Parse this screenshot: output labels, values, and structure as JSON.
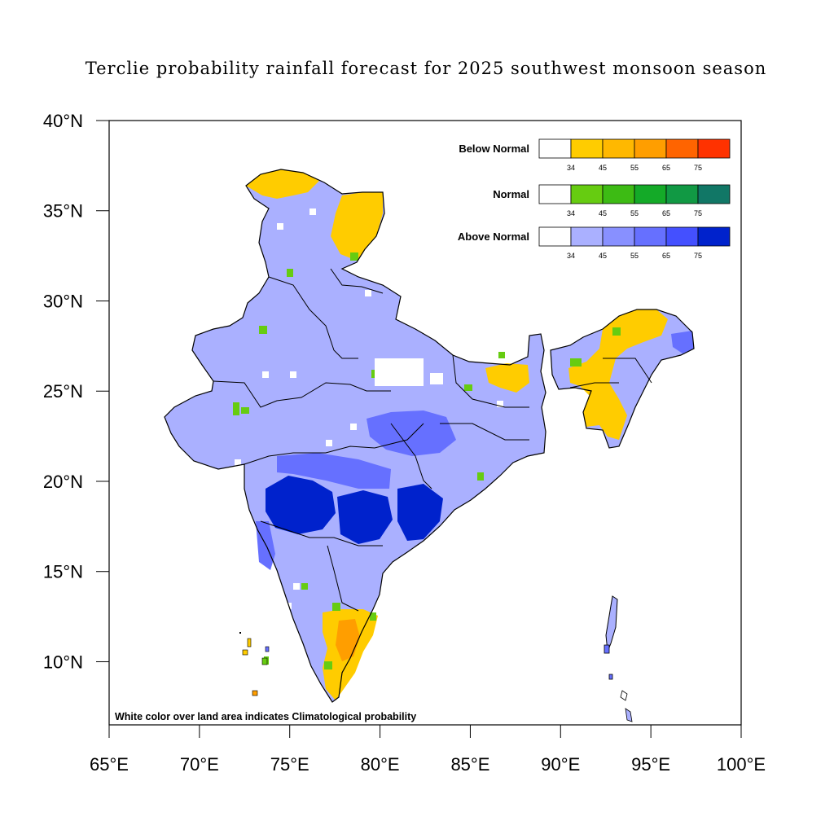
{
  "title": "Terclie probability rainfall forecast for 2025 southwest monsoon  season",
  "axes": {
    "x_ticks": [
      "65°E",
      "70°E",
      "75°E",
      "80°E",
      "85°E",
      "90°E",
      "95°E",
      "100°E"
    ],
    "y_ticks": [
      "40°N",
      "35°N",
      "30°N",
      "25°N",
      "20°N",
      "15°N",
      "10°N"
    ],
    "lon_range": [
      65,
      100
    ],
    "lat_range": [
      6.5,
      40
    ]
  },
  "legend": [
    {
      "label": "Below Normal",
      "ticks": [
        "34",
        "45",
        "55",
        "65",
        "75"
      ],
      "colors": [
        "#ffffff",
        "#ffcc00",
        "#ffb800",
        "#ff9e00",
        "#ff6400",
        "#ff3200"
      ]
    },
    {
      "label": "Normal",
      "ticks": [
        "34",
        "45",
        "55",
        "65",
        "75"
      ],
      "colors": [
        "#ffffff",
        "#66cc11",
        "#3dbb14",
        "#14aa28",
        "#119944",
        "#117766"
      ]
    },
    {
      "label": "Above Normal",
      "ticks": [
        "34",
        "45",
        "55",
        "65",
        "75"
      ],
      "colors": [
        "#ffffff",
        "#aab0ff",
        "#8890ff",
        "#6670ff",
        "#4450ff",
        "#0022cc"
      ]
    }
  ],
  "note": "White color over land area indicates Climatological probability",
  "colors": {
    "frame": "#000000",
    "below_normal_fill": "#ffcc00",
    "normal_fill": "#66cc11",
    "above_light": "#aab0ff",
    "above_mid": "#6670ff",
    "above_dark": "#0022cc",
    "orange_fill": "#ff9e00"
  }
}
